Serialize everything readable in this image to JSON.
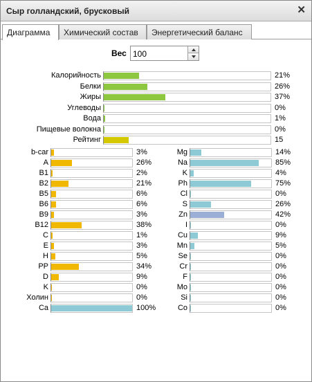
{
  "window": {
    "title": "Сыр голландский, брусковый"
  },
  "tabs": [
    {
      "label": "Диаграмма",
      "active": true
    },
    {
      "label": "Химический состав",
      "active": false
    },
    {
      "label": "Энергетический баланс",
      "active": false
    }
  ],
  "weight": {
    "label": "Вес",
    "value": "100"
  },
  "colors": {
    "green": "#8dc63f",
    "yellow": "#d4c800",
    "orange": "#f0b800",
    "blue": "#8ecad6",
    "slate": "#9aaed6"
  },
  "main_bars": [
    {
      "label": "Калорийность",
      "percent": 21,
      "value_text": "21%",
      "color": "green"
    },
    {
      "label": "Белки",
      "percent": 26,
      "value_text": "26%",
      "color": "green"
    },
    {
      "label": "Жиры",
      "percent": 37,
      "value_text": "37%",
      "color": "green"
    },
    {
      "label": "Углеводы",
      "percent": 0,
      "value_text": "0%",
      "color": "green"
    },
    {
      "label": "Вода",
      "percent": 1,
      "value_text": "1%",
      "color": "green"
    },
    {
      "label": "Пищевые волокна",
      "percent": 0,
      "value_text": "0%",
      "color": "green"
    },
    {
      "label": "Рейтинг",
      "percent": 15,
      "value_text": "15",
      "color": "yellow"
    }
  ],
  "vitamins": [
    {
      "label": "b-car",
      "percent": 3,
      "value_text": "3%",
      "color": "orange"
    },
    {
      "label": "A",
      "percent": 26,
      "value_text": "26%",
      "color": "orange"
    },
    {
      "label": "B1",
      "percent": 2,
      "value_text": "2%",
      "color": "orange"
    },
    {
      "label": "B2",
      "percent": 21,
      "value_text": "21%",
      "color": "orange"
    },
    {
      "label": "B5",
      "percent": 6,
      "value_text": "6%",
      "color": "orange"
    },
    {
      "label": "B6",
      "percent": 6,
      "value_text": "6%",
      "color": "orange"
    },
    {
      "label": "B9",
      "percent": 3,
      "value_text": "3%",
      "color": "orange"
    },
    {
      "label": "B12",
      "percent": 38,
      "value_text": "38%",
      "color": "orange"
    },
    {
      "label": "C",
      "percent": 1,
      "value_text": "1%",
      "color": "orange"
    },
    {
      "label": "E",
      "percent": 3,
      "value_text": "3%",
      "color": "orange"
    },
    {
      "label": "H",
      "percent": 5,
      "value_text": "5%",
      "color": "orange"
    },
    {
      "label": "PP",
      "percent": 34,
      "value_text": "34%",
      "color": "orange"
    },
    {
      "label": "D",
      "percent": 9,
      "value_text": "9%",
      "color": "orange"
    },
    {
      "label": "K",
      "percent": 0,
      "value_text": "0%",
      "color": "orange"
    },
    {
      "label": "Холин",
      "percent": 0,
      "value_text": "0%",
      "color": "orange"
    },
    {
      "label": "Ca",
      "percent": 100,
      "value_text": "100%",
      "color": "blue"
    }
  ],
  "minerals": [
    {
      "label": "Mg",
      "percent": 14,
      "value_text": "14%",
      "color": "blue"
    },
    {
      "label": "Na",
      "percent": 85,
      "value_text": "85%",
      "color": "blue"
    },
    {
      "label": "K",
      "percent": 4,
      "value_text": "4%",
      "color": "blue"
    },
    {
      "label": "Ph",
      "percent": 75,
      "value_text": "75%",
      "color": "blue"
    },
    {
      "label": "Cl",
      "percent": 0,
      "value_text": "0%",
      "color": "blue"
    },
    {
      "label": "S",
      "percent": 26,
      "value_text": "26%",
      "color": "blue"
    },
    {
      "label": "Zn",
      "percent": 42,
      "value_text": "42%",
      "color": "slate"
    },
    {
      "label": "I",
      "percent": 0,
      "value_text": "0%",
      "color": "blue"
    },
    {
      "label": "Cu",
      "percent": 9,
      "value_text": "9%",
      "color": "blue"
    },
    {
      "label": "Mn",
      "percent": 5,
      "value_text": "5%",
      "color": "blue"
    },
    {
      "label": "Se",
      "percent": 0,
      "value_text": "0%",
      "color": "blue"
    },
    {
      "label": "Cr",
      "percent": 0,
      "value_text": "0%",
      "color": "blue"
    },
    {
      "label": "F",
      "percent": 0,
      "value_text": "0%",
      "color": "blue"
    },
    {
      "label": "Mo",
      "percent": 0,
      "value_text": "0%",
      "color": "blue"
    },
    {
      "label": "Si",
      "percent": 0,
      "value_text": "0%",
      "color": "blue"
    },
    {
      "label": "Co",
      "percent": 0,
      "value_text": "0%",
      "color": "blue"
    }
  ]
}
